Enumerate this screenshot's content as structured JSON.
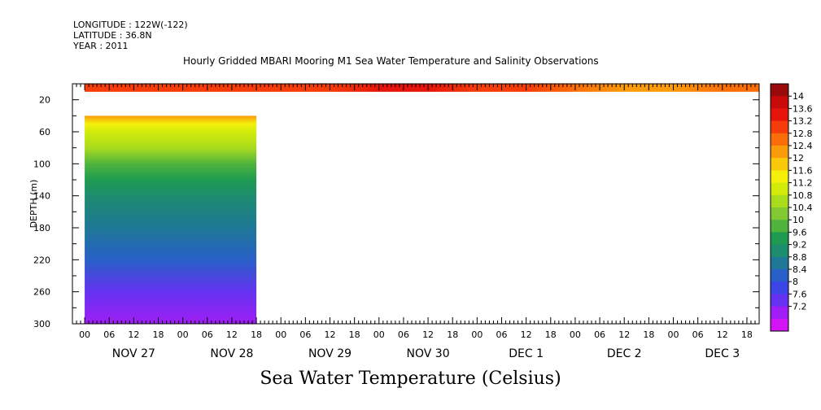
{
  "header": {
    "longitude_line": "LONGITUDE : 122W(-122)",
    "latitude_line": "LATITUDE : 36.8N",
    "year_line": "YEAR : 2011",
    "title": "Hourly Gridded MBARI Mooring M1 Sea Water Temperature and Salinity Observations"
  },
  "footer": {
    "variable_title": "Sea Water Temperature (Celsius)"
  },
  "chart_data": {
    "type": "heatmap",
    "title": "Hourly Gridded MBARI Mooring M1 Sea Water Temperature and Salinity Observations",
    "ylabel": "DEPTH (m)",
    "xlabel": "",
    "ylim": [
      300,
      0
    ],
    "y_reversed": true,
    "y_ticks": [
      20,
      60,
      100,
      140,
      180,
      220,
      260,
      300
    ],
    "x_hour_ticks": [
      "00",
      "06",
      "12",
      "18",
      "00",
      "06",
      "12",
      "18",
      "00",
      "06",
      "12",
      "18",
      "00",
      "06",
      "12",
      "18",
      "00",
      "06",
      "12",
      "18",
      "00",
      "06",
      "12",
      "18",
      "00",
      "06",
      "12",
      "18"
    ],
    "x_day_labels": [
      "NOV 27",
      "NOV 28",
      "NOV 29",
      "NOV 30",
      "DEC  1",
      "DEC  2",
      "DEC  3"
    ],
    "x_range": [
      "2011-11-26 21:00",
      "2011-12-03 21:00"
    ],
    "surface_layer": {
      "depth_range": [
        0,
        10
      ],
      "times": [
        "2011-11-27 00:00",
        "2011-11-27 12:00",
        "2011-11-28 00:00",
        "2011-11-28 12:00",
        "2011-11-29 00:00",
        "2011-11-29 12:00",
        "2011-11-30 00:00",
        "2011-11-30 12:00",
        "2011-12-01 00:00",
        "2011-12-01 12:00",
        "2011-12-02 00:00",
        "2011-12-02 12:00",
        "2011-12-03 00:00",
        "2011-12-03 12:00",
        "2011-12-03 21:00"
      ],
      "temperature": [
        13.4,
        13.4,
        13.4,
        13.5,
        13.5,
        13.6,
        13.8,
        13.7,
        13.6,
        13.4,
        13.0,
        12.6,
        12.7,
        13.1,
        12.9
      ]
    },
    "profile_block": {
      "time_range": [
        "2011-11-27 00:00",
        "2011-11-28 18:00"
      ],
      "depths": [
        40,
        50,
        60,
        80,
        100,
        120,
        140,
        180,
        220,
        260,
        300
      ],
      "temperature": [
        12.8,
        12.0,
        11.5,
        10.9,
        10.4,
        9.9,
        9.6,
        9.1,
        8.6,
        8.0,
        7.6
      ]
    },
    "colorbar": {
      "levels": [
        14,
        13.6,
        13.2,
        12.8,
        12.4,
        12,
        11.6,
        11.2,
        10.8,
        10.4,
        10,
        9.6,
        9.2,
        8.8,
        8.4,
        8,
        7.6,
        7.2
      ],
      "colors": [
        "#9b0a0a",
        "#c80a0a",
        "#e6140a",
        "#f53c0a",
        "#fa6e0a",
        "#fa9b0a",
        "#fac80a",
        "#f5f00a",
        "#d2eb0a",
        "#aadc1e",
        "#82c832",
        "#50b43c",
        "#1e9b50",
        "#1e8c6e",
        "#1e7896",
        "#2860c8",
        "#3c46e6",
        "#6432f0",
        "#a01ef5",
        "#d214f5"
      ],
      "orientation": "vertical",
      "placement": "right"
    }
  }
}
